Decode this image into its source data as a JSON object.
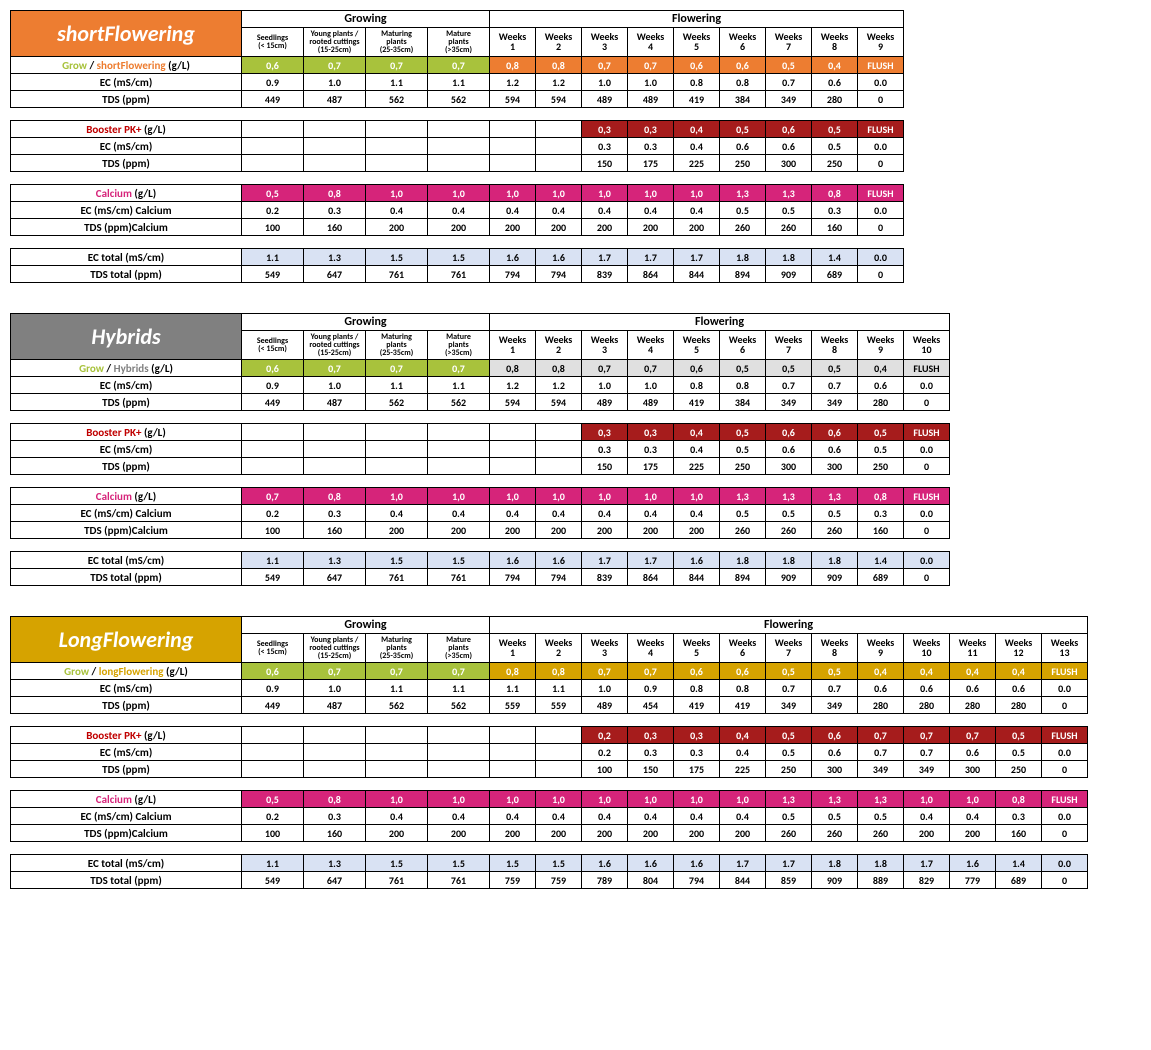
{
  "colors": {
    "orange": "#ed7d31",
    "grow_green": "#a8c23c",
    "booster_red": "#a61c1c",
    "booster_text": "#c00000",
    "calcium_pink": "#d6247a",
    "calcium_text": "#d6247a",
    "grey": "#808080",
    "gold": "#d6a300",
    "ec_blue": "#d9e2f3",
    "lt_grey": "#e0e0e0",
    "grow_text": "#a8c23c"
  },
  "headers": {
    "growing": "Growing",
    "flowering": "Flowering",
    "seedlings": "Seedlings\n(< 15cm)",
    "young": "Young plants /\nrooted cuttings\n(15-25cm)",
    "maturing": "Maturing\nplants\n(25-35cm)",
    "mature": "Mature\nplants\n(>35cm)",
    "weeks": "Weeks"
  },
  "row_labels": {
    "grow": "Grow",
    "grow_suffix": " (g/L)",
    "ec": "EC (mS/cm)",
    "tds": "TDS (ppm)",
    "booster": "Booster PK+",
    "calcium": "Calcium",
    "ec_cal": "EC (mS/cm) Calcium",
    "tds_cal": "TDS (ppm)Calcium",
    "ec_tot": "EC total (mS/cm)",
    "tds_tot": "TDS total (ppm)"
  },
  "sections": [
    {
      "title": "shortFlowering",
      "typeLabel": "shortFlowering",
      "title_bg": "#ed7d31",
      "type_color": "#ed7d31",
      "week_bg": "#ed7d31",
      "weeks": 9,
      "rows": {
        "grow": [
          "0,6",
          "0,7",
          "0,7",
          "0,7",
          "0,8",
          "0,8",
          "0,7",
          "0,7",
          "0,6",
          "0,6",
          "0,5",
          "0,4",
          "FLUSH"
        ],
        "ec": [
          "0.9",
          "1.0",
          "1.1",
          "1.1",
          "1.2",
          "1.2",
          "1.0",
          "1.0",
          "0.8",
          "0.8",
          "0.7",
          "0.6",
          "0.0"
        ],
        "tds": [
          "449",
          "487",
          "562",
          "562",
          "594",
          "594",
          "489",
          "489",
          "419",
          "384",
          "349",
          "280",
          "0"
        ],
        "booster": [
          "",
          "",
          "",
          "",
          "",
          "",
          "0,3",
          "0,3",
          "0,4",
          "0,5",
          "0,6",
          "0,5",
          "FLUSH"
        ],
        "b_ec": [
          "",
          "",
          "",
          "",
          "",
          "",
          "0.3",
          "0.3",
          "0.4",
          "0.6",
          "0.6",
          "0.5",
          "0.0"
        ],
        "b_tds": [
          "",
          "",
          "",
          "",
          "",
          "",
          "150",
          "175",
          "225",
          "250",
          "300",
          "250",
          "0"
        ],
        "calcium": [
          "0,5",
          "0,8",
          "1,0",
          "1,0",
          "1,0",
          "1,0",
          "1,0",
          "1,0",
          "1,0",
          "1,3",
          "1,3",
          "0,8",
          "FLUSH"
        ],
        "c_ec": [
          "0.2",
          "0.3",
          "0.4",
          "0.4",
          "0.4",
          "0.4",
          "0.4",
          "0.4",
          "0.4",
          "0.5",
          "0.5",
          "0.3",
          "0.0"
        ],
        "c_tds": [
          "100",
          "160",
          "200",
          "200",
          "200",
          "200",
          "200",
          "200",
          "200",
          "260",
          "260",
          "160",
          "0"
        ],
        "ec_tot": [
          "1.1",
          "1.3",
          "1.5",
          "1.5",
          "1.6",
          "1.6",
          "1.7",
          "1.7",
          "1.7",
          "1.8",
          "1.8",
          "1.4",
          "0.0"
        ],
        "tds_tot": [
          "549",
          "647",
          "761",
          "761",
          "794",
          "794",
          "839",
          "864",
          "844",
          "894",
          "909",
          "689",
          "0"
        ]
      }
    },
    {
      "title": "Hybrids",
      "typeLabel": "Hybrids",
      "title_bg": "#808080",
      "type_color": "#808080",
      "week_bg": "#e0e0e0",
      "week_text_black": true,
      "weeks": 10,
      "rows": {
        "grow": [
          "0,6",
          "0,7",
          "0,7",
          "0,7",
          "0,8",
          "0,8",
          "0,7",
          "0,7",
          "0,6",
          "0,5",
          "0,5",
          "0,5",
          "0,4",
          "FLUSH"
        ],
        "ec": [
          "0.9",
          "1.0",
          "1.1",
          "1.1",
          "1.2",
          "1.2",
          "1.0",
          "1.0",
          "0.8",
          "0.8",
          "0.7",
          "0.7",
          "0.6",
          "0.0"
        ],
        "tds": [
          "449",
          "487",
          "562",
          "562",
          "594",
          "594",
          "489",
          "489",
          "419",
          "384",
          "349",
          "349",
          "280",
          "0"
        ],
        "booster": [
          "",
          "",
          "",
          "",
          "",
          "",
          "0,3",
          "0,3",
          "0,4",
          "0,5",
          "0,6",
          "0,6",
          "0,5",
          "FLUSH"
        ],
        "b_ec": [
          "",
          "",
          "",
          "",
          "",
          "",
          "0.3",
          "0.3",
          "0.4",
          "0.5",
          "0.6",
          "0.6",
          "0.5",
          "0.0"
        ],
        "b_tds": [
          "",
          "",
          "",
          "",
          "",
          "",
          "150",
          "175",
          "225",
          "250",
          "300",
          "300",
          "250",
          "0"
        ],
        "calcium": [
          "0,7",
          "0,8",
          "1,0",
          "1,0",
          "1,0",
          "1,0",
          "1,0",
          "1,0",
          "1,0",
          "1,3",
          "1,3",
          "1,3",
          "0,8",
          "FLUSH"
        ],
        "c_ec": [
          "0.2",
          "0.3",
          "0.4",
          "0.4",
          "0.4",
          "0.4",
          "0.4",
          "0.4",
          "0.4",
          "0.5",
          "0.5",
          "0.5",
          "0.3",
          "0.0"
        ],
        "c_tds": [
          "100",
          "160",
          "200",
          "200",
          "200",
          "200",
          "200",
          "200",
          "200",
          "260",
          "260",
          "260",
          "160",
          "0"
        ],
        "ec_tot": [
          "1.1",
          "1.3",
          "1.5",
          "1.5",
          "1.6",
          "1.6",
          "1.7",
          "1.7",
          "1.6",
          "1.8",
          "1.8",
          "1.8",
          "1.4",
          "0.0"
        ],
        "tds_tot": [
          "549",
          "647",
          "761",
          "761",
          "794",
          "794",
          "839",
          "864",
          "844",
          "894",
          "909",
          "909",
          "689",
          "0"
        ]
      }
    },
    {
      "title": "LongFlowering",
      "typeLabel": "longFlowering",
      "title_bg": "#d6a300",
      "type_color": "#d6a300",
      "week_bg": "#d6a300",
      "weeks": 13,
      "rows": {
        "grow": [
          "0,6",
          "0,7",
          "0,7",
          "0,7",
          "0,8",
          "0,8",
          "0,7",
          "0,7",
          "0,6",
          "0,6",
          "0,5",
          "0,5",
          "0,4",
          "0,4",
          "0,4",
          "0,4",
          "FLUSH"
        ],
        "ec": [
          "0.9",
          "1.0",
          "1.1",
          "1.1",
          "1.1",
          "1.1",
          "1.0",
          "0.9",
          "0.8",
          "0.8",
          "0.7",
          "0.7",
          "0.6",
          "0.6",
          "0.6",
          "0.6",
          "0.0"
        ],
        "tds": [
          "449",
          "487",
          "562",
          "562",
          "559",
          "559",
          "489",
          "454",
          "419",
          "419",
          "349",
          "349",
          "280",
          "280",
          "280",
          "280",
          "0"
        ],
        "booster": [
          "",
          "",
          "",
          "",
          "",
          "",
          "0,2",
          "0,3",
          "0,3",
          "0,4",
          "0,5",
          "0,6",
          "0,7",
          "0,7",
          "0,7",
          "0,5",
          "FLUSH"
        ],
        "b_ec": [
          "",
          "",
          "",
          "",
          "",
          "",
          "0.2",
          "0.3",
          "0.3",
          "0.4",
          "0.5",
          "0.6",
          "0.7",
          "0.7",
          "0.6",
          "0.5",
          "0.0"
        ],
        "b_tds": [
          "",
          "",
          "",
          "",
          "",
          "",
          "100",
          "150",
          "175",
          "225",
          "250",
          "300",
          "349",
          "349",
          "300",
          "250",
          "0"
        ],
        "calcium": [
          "0,5",
          "0,8",
          "1,0",
          "1,0",
          "1,0",
          "1,0",
          "1,0",
          "1,0",
          "1,0",
          "1,0",
          "1,3",
          "1,3",
          "1,3",
          "1,0",
          "1,0",
          "0,8",
          "FLUSH"
        ],
        "c_ec": [
          "0.2",
          "0.3",
          "0.4",
          "0.4",
          "0.4",
          "0.4",
          "0.4",
          "0.4",
          "0.4",
          "0.4",
          "0.5",
          "0.5",
          "0.5",
          "0.4",
          "0.4",
          "0.3",
          "0.0"
        ],
        "c_tds": [
          "100",
          "160",
          "200",
          "200",
          "200",
          "200",
          "200",
          "200",
          "200",
          "200",
          "260",
          "260",
          "260",
          "200",
          "200",
          "160",
          "0"
        ],
        "ec_tot": [
          "1.1",
          "1.3",
          "1.5",
          "1.5",
          "1.5",
          "1.5",
          "1.6",
          "1.6",
          "1.6",
          "1.7",
          "1.7",
          "1.8",
          "1.8",
          "1.7",
          "1.6",
          "1.4",
          "0.0"
        ],
        "tds_tot": [
          "549",
          "647",
          "761",
          "761",
          "759",
          "759",
          "789",
          "804",
          "794",
          "844",
          "859",
          "909",
          "889",
          "829",
          "779",
          "689",
          "0"
        ]
      }
    }
  ]
}
